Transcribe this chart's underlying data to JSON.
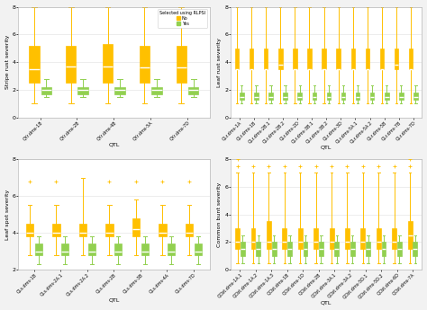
{
  "panels": [
    {
      "ylabel": "Stripe rust severity",
      "xlabel": "QTL",
      "ylim": [
        0,
        8
      ],
      "yticks": [
        0,
        2,
        4,
        6,
        8
      ],
      "categories": [
        "QYr.dms-1B",
        "QYr.dms-2B",
        "QYr.dms-4B",
        "QYr.dms-5A",
        "QYr.dms-7D"
      ],
      "no_boxes": [
        {
          "q1": 2.5,
          "median": 3.5,
          "q3": 5.2,
          "whislo": 1.0,
          "whishi": 8.0,
          "fliers": []
        },
        {
          "q1": 2.5,
          "median": 3.7,
          "q3": 5.2,
          "whislo": 1.0,
          "whishi": 8.0,
          "fliers": []
        },
        {
          "q1": 2.5,
          "median": 3.7,
          "q3": 5.3,
          "whislo": 1.0,
          "whishi": 8.0,
          "fliers": []
        },
        {
          "q1": 2.5,
          "median": 3.6,
          "q3": 5.2,
          "whislo": 1.0,
          "whishi": 8.0,
          "fliers": []
        },
        {
          "q1": 2.5,
          "median": 3.6,
          "q3": 5.2,
          "whislo": 1.0,
          "whishi": 8.0,
          "fliers": []
        }
      ],
      "yes_boxes": [
        {
          "q1": 1.7,
          "median": 2.0,
          "q3": 2.2,
          "whislo": 1.5,
          "whishi": 2.8,
          "fliers": []
        },
        {
          "q1": 1.7,
          "median": 2.0,
          "q3": 2.2,
          "whislo": 1.5,
          "whishi": 2.8,
          "fliers": []
        },
        {
          "q1": 1.7,
          "median": 2.0,
          "q3": 2.2,
          "whislo": 1.5,
          "whishi": 2.8,
          "fliers": []
        },
        {
          "q1": 1.7,
          "median": 2.0,
          "q3": 2.2,
          "whislo": 1.5,
          "whishi": 2.8,
          "fliers": []
        },
        {
          "q1": 1.7,
          "median": 2.0,
          "q3": 2.2,
          "whislo": 1.5,
          "whishi": 2.8,
          "fliers": []
        }
      ],
      "show_legend": true
    },
    {
      "ylabel": "Leaf rust severity",
      "xlabel": "QTL",
      "ylim": [
        0,
        8
      ],
      "yticks": [
        0,
        2,
        4,
        6,
        8
      ],
      "categories": [
        "QLr.dms-1A",
        "QLr.dms-1B",
        "QLr.dms-2B.1",
        "QLr.dms-2B.2",
        "QLr.dms-2D",
        "QLr.dms-3B.1",
        "QLr.dms-3B.2",
        "QLr.dms-3D",
        "QLr.dms-5A.1",
        "QLr.dms-5A.2",
        "QLr.dms-5B",
        "QLr.dms-7B",
        "QLr.dms-7D"
      ],
      "no_boxes": [
        {
          "q1": 3.5,
          "median": 3.5,
          "q3": 5.0,
          "whislo": 1.0,
          "whishi": 8.0,
          "fliers": []
        },
        {
          "q1": 3.5,
          "median": 3.5,
          "q3": 5.0,
          "whislo": 1.0,
          "whishi": 8.0,
          "fliers": []
        },
        {
          "q1": 3.5,
          "median": 3.5,
          "q3": 5.0,
          "whislo": 1.0,
          "whishi": 8.0,
          "fliers": []
        },
        {
          "q1": 3.5,
          "median": 3.8,
          "q3": 5.0,
          "whislo": 1.0,
          "whishi": 8.0,
          "fliers": []
        },
        {
          "q1": 3.5,
          "median": 3.5,
          "q3": 5.0,
          "whislo": 1.0,
          "whishi": 8.0,
          "fliers": []
        },
        {
          "q1": 3.5,
          "median": 3.5,
          "q3": 5.0,
          "whislo": 1.0,
          "whishi": 8.0,
          "fliers": []
        },
        {
          "q1": 3.5,
          "median": 3.5,
          "q3": 5.0,
          "whislo": 1.0,
          "whishi": 8.0,
          "fliers": []
        },
        {
          "q1": 3.5,
          "median": 3.5,
          "q3": 5.0,
          "whislo": 1.0,
          "whishi": 8.0,
          "fliers": []
        },
        {
          "q1": 3.5,
          "median": 3.5,
          "q3": 5.0,
          "whislo": 1.0,
          "whishi": 8.0,
          "fliers": []
        },
        {
          "q1": 3.5,
          "median": 3.5,
          "q3": 5.0,
          "whislo": 1.0,
          "whishi": 8.0,
          "fliers": []
        },
        {
          "q1": 3.5,
          "median": 3.5,
          "q3": 5.0,
          "whislo": 1.0,
          "whishi": 8.0,
          "fliers": []
        },
        {
          "q1": 3.5,
          "median": 3.8,
          "q3": 5.0,
          "whislo": 1.0,
          "whishi": 8.0,
          "fliers": []
        },
        {
          "q1": 3.5,
          "median": 3.5,
          "q3": 5.0,
          "whislo": 1.0,
          "whishi": 8.0,
          "fliers": []
        }
      ],
      "yes_boxes": [
        {
          "q1": 1.3,
          "median": 1.5,
          "q3": 1.8,
          "whislo": 1.0,
          "whishi": 2.3,
          "fliers": []
        },
        {
          "q1": 1.3,
          "median": 1.5,
          "q3": 1.8,
          "whislo": 1.0,
          "whishi": 2.3,
          "fliers": []
        },
        {
          "q1": 1.3,
          "median": 1.5,
          "q3": 1.8,
          "whislo": 1.0,
          "whishi": 2.3,
          "fliers": []
        },
        {
          "q1": 1.3,
          "median": 1.5,
          "q3": 1.8,
          "whislo": 1.0,
          "whishi": 2.3,
          "fliers": []
        },
        {
          "q1": 1.3,
          "median": 1.5,
          "q3": 1.8,
          "whislo": 1.0,
          "whishi": 2.3,
          "fliers": []
        },
        {
          "q1": 1.3,
          "median": 1.5,
          "q3": 1.8,
          "whislo": 1.0,
          "whishi": 2.3,
          "fliers": []
        },
        {
          "q1": 1.3,
          "median": 1.5,
          "q3": 1.8,
          "whislo": 1.0,
          "whishi": 2.3,
          "fliers": []
        },
        {
          "q1": 1.3,
          "median": 1.5,
          "q3": 1.8,
          "whislo": 1.0,
          "whishi": 2.3,
          "fliers": []
        },
        {
          "q1": 1.3,
          "median": 1.5,
          "q3": 1.8,
          "whislo": 1.0,
          "whishi": 2.3,
          "fliers": []
        },
        {
          "q1": 1.3,
          "median": 1.5,
          "q3": 1.8,
          "whislo": 1.0,
          "whishi": 2.3,
          "fliers": []
        },
        {
          "q1": 1.3,
          "median": 1.5,
          "q3": 1.8,
          "whislo": 1.0,
          "whishi": 2.3,
          "fliers": []
        },
        {
          "q1": 1.3,
          "median": 1.5,
          "q3": 1.8,
          "whislo": 1.0,
          "whishi": 2.3,
          "fliers": []
        },
        {
          "q1": 1.3,
          "median": 1.5,
          "q3": 1.8,
          "whislo": 1.0,
          "whishi": 2.3,
          "fliers": []
        }
      ],
      "show_legend": false
    },
    {
      "ylabel": "Leaf spot severity",
      "xlabel": "QTL",
      "ylim": [
        2,
        8
      ],
      "yticks": [
        2,
        4,
        6,
        8
      ],
      "categories": [
        "QLs.dms-1B",
        "QLs.dms-2A.1",
        "QLs.dms-2A.2",
        "QLs.dms-2B",
        "QLs.dms-3B",
        "QLs.dms-4A",
        "QLs.dms-7D"
      ],
      "no_boxes": [
        {
          "q1": 3.8,
          "median": 4.0,
          "q3": 4.5,
          "whislo": 2.8,
          "whishi": 5.5,
          "fliers": [
            6.8
          ]
        },
        {
          "q1": 3.8,
          "median": 4.0,
          "q3": 4.5,
          "whislo": 2.8,
          "whishi": 5.5,
          "fliers": [
            6.8
          ]
        },
        {
          "q1": 3.8,
          "median": 4.0,
          "q3": 4.5,
          "whislo": 2.8,
          "whishi": 7.0,
          "fliers": []
        },
        {
          "q1": 3.8,
          "median": 4.0,
          "q3": 4.5,
          "whislo": 2.8,
          "whishi": 5.5,
          "fliers": [
            6.8
          ]
        },
        {
          "q1": 3.8,
          "median": 4.2,
          "q3": 4.8,
          "whislo": 2.8,
          "whishi": 5.8,
          "fliers": [
            6.8
          ]
        },
        {
          "q1": 3.8,
          "median": 4.0,
          "q3": 4.5,
          "whislo": 2.8,
          "whishi": 5.5,
          "fliers": [
            6.8
          ]
        },
        {
          "q1": 3.8,
          "median": 4.0,
          "q3": 4.5,
          "whislo": 2.8,
          "whishi": 5.5,
          "fliers": [
            6.8
          ]
        }
      ],
      "yes_boxes": [
        {
          "q1": 2.8,
          "median": 3.0,
          "q3": 3.4,
          "whislo": 2.3,
          "whishi": 3.8,
          "fliers": []
        },
        {
          "q1": 2.8,
          "median": 3.0,
          "q3": 3.4,
          "whislo": 2.3,
          "whishi": 3.8,
          "fliers": []
        },
        {
          "q1": 2.8,
          "median": 3.0,
          "q3": 3.4,
          "whislo": 2.3,
          "whishi": 3.8,
          "fliers": []
        },
        {
          "q1": 2.8,
          "median": 3.0,
          "q3": 3.4,
          "whislo": 2.3,
          "whishi": 3.8,
          "fliers": []
        },
        {
          "q1": 2.8,
          "median": 3.0,
          "q3": 3.4,
          "whislo": 2.3,
          "whishi": 3.8,
          "fliers": []
        },
        {
          "q1": 2.8,
          "median": 3.0,
          "q3": 3.4,
          "whislo": 2.3,
          "whishi": 3.8,
          "fliers": []
        },
        {
          "q1": 2.8,
          "median": 3.0,
          "q3": 3.4,
          "whislo": 2.3,
          "whishi": 3.8,
          "fliers": []
        }
      ],
      "show_legend": false
    },
    {
      "ylabel": "Common bunt severity",
      "xlabel": "QTL",
      "ylim": [
        0,
        8
      ],
      "yticks": [
        0,
        2,
        4,
        6,
        8
      ],
      "categories": [
        "QCbt.dms-1A.1",
        "QCbt.dms-1A.2",
        "QCbt.dms-1A.3",
        "QCbt.dms-1B",
        "QCbt.dms-1D",
        "QCbt.dms-2B",
        "QCbt.dms-3A.1",
        "QCbt.dms-3A.2",
        "QCbt.dms-5D.1",
        "QCbt.dms-5D.2",
        "QCbt.dms-6D",
        "QCbt.dms-7A"
      ],
      "no_boxes": [
        {
          "q1": 1.5,
          "median": 2.0,
          "q3": 3.0,
          "whislo": 0.5,
          "whishi": 7.0,
          "fliers": [
            7.5,
            8.0
          ]
        },
        {
          "q1": 1.5,
          "median": 2.0,
          "q3": 3.0,
          "whislo": 0.5,
          "whishi": 7.0,
          "fliers": [
            7.5
          ]
        },
        {
          "q1": 1.5,
          "median": 2.0,
          "q3": 3.5,
          "whislo": 0.5,
          "whishi": 7.0,
          "fliers": [
            7.5
          ]
        },
        {
          "q1": 1.5,
          "median": 2.0,
          "q3": 3.0,
          "whislo": 0.5,
          "whishi": 7.0,
          "fliers": [
            7.5
          ]
        },
        {
          "q1": 1.5,
          "median": 2.0,
          "q3": 3.0,
          "whislo": 0.5,
          "whishi": 7.0,
          "fliers": [
            7.5
          ]
        },
        {
          "q1": 1.5,
          "median": 2.0,
          "q3": 3.0,
          "whislo": 0.5,
          "whishi": 7.0,
          "fliers": [
            7.5
          ]
        },
        {
          "q1": 1.5,
          "median": 2.0,
          "q3": 3.0,
          "whislo": 0.5,
          "whishi": 7.0,
          "fliers": [
            7.5
          ]
        },
        {
          "q1": 1.5,
          "median": 2.0,
          "q3": 3.0,
          "whislo": 0.5,
          "whishi": 7.0,
          "fliers": [
            7.5
          ]
        },
        {
          "q1": 1.5,
          "median": 2.0,
          "q3": 3.0,
          "whislo": 0.5,
          "whishi": 7.0,
          "fliers": [
            7.5
          ]
        },
        {
          "q1": 1.5,
          "median": 2.0,
          "q3": 3.0,
          "whislo": 0.5,
          "whishi": 7.0,
          "fliers": [
            7.5
          ]
        },
        {
          "q1": 1.5,
          "median": 2.0,
          "q3": 3.0,
          "whislo": 0.5,
          "whishi": 7.0,
          "fliers": [
            7.5
          ]
        },
        {
          "q1": 1.5,
          "median": 2.5,
          "q3": 3.5,
          "whislo": 0.5,
          "whishi": 7.0,
          "fliers": [
            7.5,
            8.0
          ]
        }
      ],
      "yes_boxes": [
        {
          "q1": 1.0,
          "median": 1.5,
          "q3": 2.0,
          "whislo": 0.5,
          "whishi": 2.5,
          "fliers": []
        },
        {
          "q1": 1.0,
          "median": 1.5,
          "q3": 2.0,
          "whislo": 0.5,
          "whishi": 2.5,
          "fliers": []
        },
        {
          "q1": 1.0,
          "median": 1.5,
          "q3": 2.0,
          "whislo": 0.5,
          "whishi": 2.5,
          "fliers": []
        },
        {
          "q1": 1.0,
          "median": 1.5,
          "q3": 2.0,
          "whislo": 0.5,
          "whishi": 2.5,
          "fliers": []
        },
        {
          "q1": 1.0,
          "median": 1.5,
          "q3": 2.0,
          "whislo": 0.5,
          "whishi": 2.5,
          "fliers": []
        },
        {
          "q1": 1.0,
          "median": 1.5,
          "q3": 2.0,
          "whislo": 0.5,
          "whishi": 2.5,
          "fliers": []
        },
        {
          "q1": 1.0,
          "median": 1.5,
          "q3": 2.0,
          "whislo": 0.5,
          "whishi": 2.5,
          "fliers": []
        },
        {
          "q1": 1.0,
          "median": 1.5,
          "q3": 2.0,
          "whislo": 0.5,
          "whishi": 2.5,
          "fliers": []
        },
        {
          "q1": 1.0,
          "median": 1.5,
          "q3": 2.0,
          "whislo": 0.5,
          "whishi": 2.5,
          "fliers": []
        },
        {
          "q1": 1.0,
          "median": 1.5,
          "q3": 2.0,
          "whislo": 0.5,
          "whishi": 2.5,
          "fliers": []
        },
        {
          "q1": 1.0,
          "median": 1.5,
          "q3": 2.0,
          "whislo": 0.5,
          "whishi": 2.5,
          "fliers": []
        },
        {
          "q1": 1.0,
          "median": 1.5,
          "q3": 2.0,
          "whislo": 0.5,
          "whishi": 2.5,
          "fliers": []
        }
      ],
      "show_legend": false
    }
  ],
  "color_no": "#FFC000",
  "color_yes": "#92D050",
  "color_median": "#FFFFFF",
  "legend_title": "Selected using RLPSI",
  "bg_color": "#F2F2F2",
  "plot_bg": "#FFFFFF",
  "flier_marker": "+",
  "flier_size": 2.5
}
